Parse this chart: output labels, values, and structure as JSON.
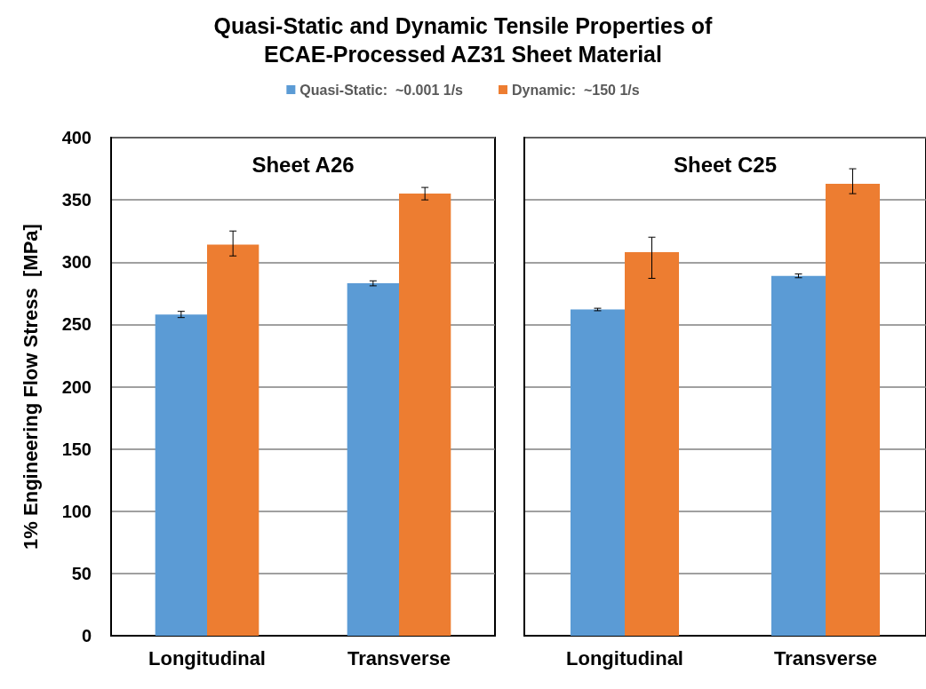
{
  "chart_data": [
    {
      "type": "bar",
      "title": "Quasi-Static and Dynamic Tensile Properties of\nECAE-Processed AZ31 Sheet Material",
      "ylabel": "1% Engineering Flow Stress  [MPa]",
      "annotations": [
        "Sheet A26"
      ],
      "categories": [
        "Longitudinal",
        "Transverse"
      ],
      "series": [
        {
          "name": "Quasi-Static:  ~0.001 1/s",
          "color": "#5b9bd5",
          "values": [
            258,
            283
          ],
          "errors": [
            2.5,
            2
          ]
        },
        {
          "name": "Dynamic:  ~150 1/s",
          "color": "#ed7d31",
          "values": [
            314,
            355
          ],
          "errors": [
            [
              305,
              325
            ],
            5
          ]
        }
      ],
      "ylim": [
        0,
        400
      ],
      "yticks": [
        0,
        50,
        100,
        150,
        200,
        250,
        300,
        350,
        400
      ],
      "grid": "y",
      "legend": "top"
    },
    {
      "type": "bar",
      "annotations": [
        "Sheet C25"
      ],
      "categories": [
        "Longitudinal",
        "Transverse"
      ],
      "series": [
        {
          "color": "#5b9bd5",
          "values": [
            262,
            289
          ],
          "errors": [
            1,
            1.5
          ]
        },
        {
          "color": "#ed7d31",
          "values": [
            308,
            363
          ],
          "errors": [
            [
              287,
              320
            ],
            [
              355,
              375
            ]
          ]
        }
      ],
      "ylim": [
        0,
        400
      ],
      "yticks": [
        0,
        50,
        100,
        150,
        200,
        250,
        300,
        350,
        400
      ],
      "grid": "y",
      "tick_labels": "x"
    }
  ]
}
